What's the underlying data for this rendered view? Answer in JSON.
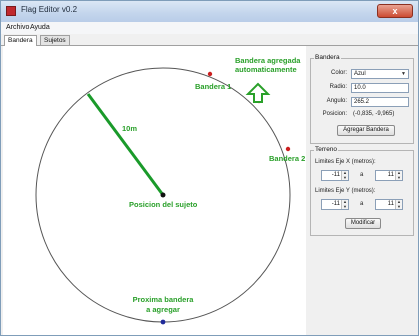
{
  "window": {
    "title": "Flag Editor v0.2",
    "close_glyph": "x"
  },
  "menu": [
    "Archivo",
    "Ayuda"
  ],
  "tabs": [
    {
      "label": "Bandera",
      "active": true
    },
    {
      "label": "Sujetos",
      "active": false
    }
  ],
  "canvas": {
    "labels": {
      "bandera1": "Bandera 1",
      "bandera2": "Bandera 2",
      "radius": "10m",
      "subject": "Posicion del sujeto",
      "added_line1": "Bandera agregada",
      "added_line2": "automaticamente",
      "next_line1": "Proxima bandera",
      "next_line2": "a agregar"
    },
    "colors": {
      "circle": "#555555",
      "radius_line": "#1a9a2a",
      "flag_red": "#cc1f1f",
      "flag_blue": "#1f2a9a",
      "annotation": "#2aa02a",
      "subject": "#111111"
    }
  },
  "panel": {
    "bandera": {
      "title": "Bandera",
      "color_label": "Color:",
      "color_value": "Azul",
      "radio_label": "Radio:",
      "radio_value": "10.0",
      "angulo_label": "Angulo:",
      "angulo_value": "265.2",
      "posicion_label": "Posicion:",
      "posicion_value": "(-0,835, -9,965)",
      "button": "Agregar Bandera"
    },
    "terreno": {
      "title": "Terreno",
      "x_label": "Limites Eje X (metros):",
      "x_min": "-11",
      "x_max": "11",
      "y_label": "Limites Eje Y (metros):",
      "y_min": "-11",
      "y_max": "11",
      "separator": "a",
      "button": "Modificar"
    }
  }
}
